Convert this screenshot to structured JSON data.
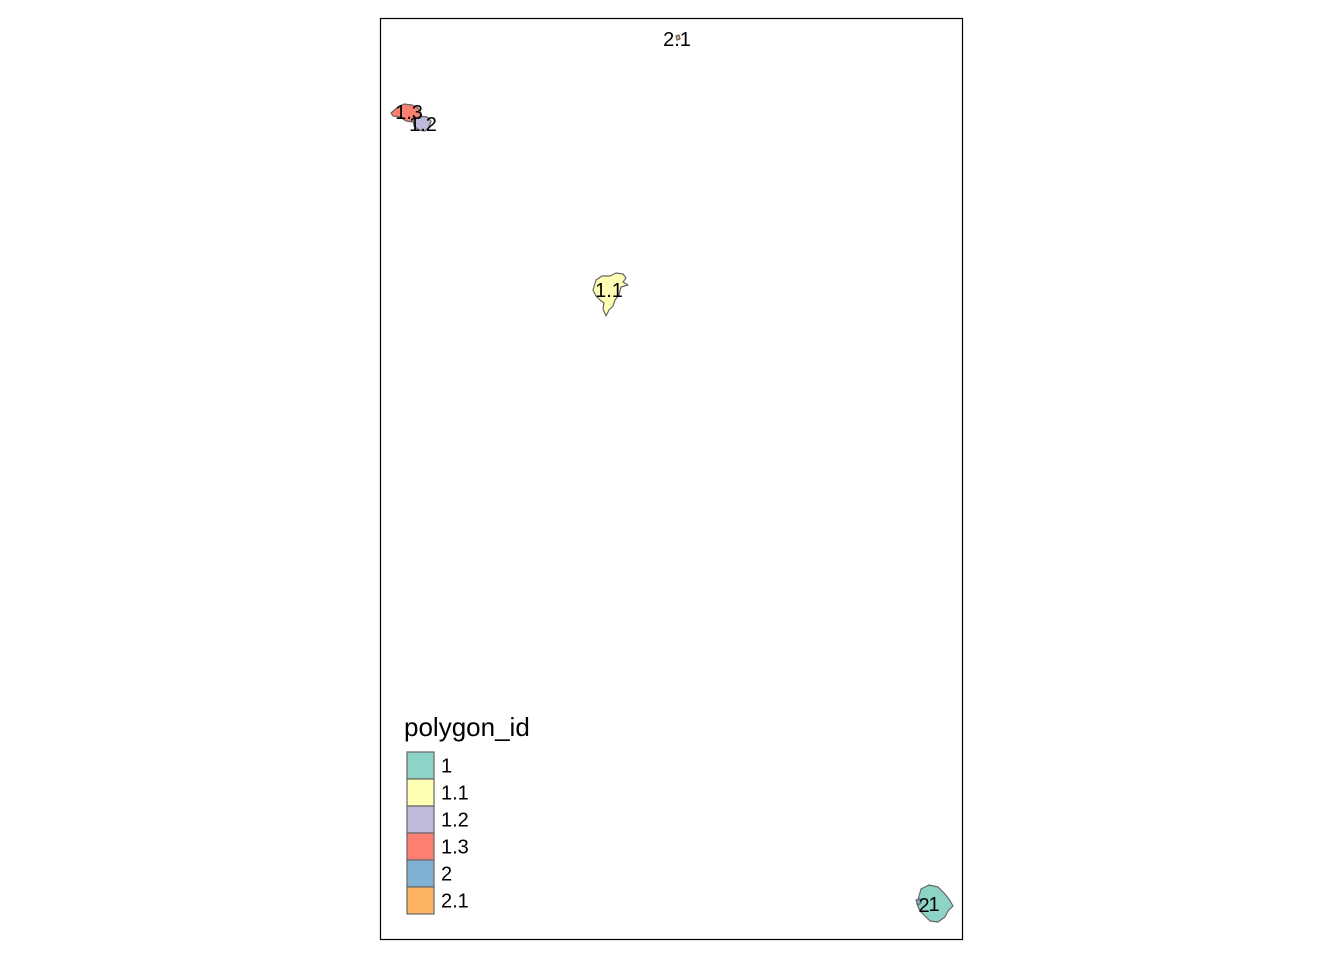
{
  "legend": {
    "title": "polygon_id",
    "entries": [
      {
        "label": "1",
        "color": "#8DD3C7"
      },
      {
        "label": "1.1",
        "color": "#FFFFB3"
      },
      {
        "label": "1.2",
        "color": "#BEBADA"
      },
      {
        "label": "1.3",
        "color": "#FB8072"
      },
      {
        "label": "2",
        "color": "#80B1D3"
      },
      {
        "label": "2.1",
        "color": "#FDB462"
      }
    ]
  },
  "polygons": [
    {
      "id": "1.3",
      "label": "1.3",
      "color": "#FB8072"
    },
    {
      "id": "1.2",
      "label": "1.2",
      "color": "#BEBADA"
    },
    {
      "id": "1.1",
      "label": "1.1",
      "color": "#FFFFB3"
    },
    {
      "id": "1",
      "label": "1",
      "color": "#8DD3C7"
    },
    {
      "id": "2",
      "label": "2",
      "color": "#80B1D3"
    },
    {
      "id": "2.1",
      "label": "2.1",
      "color": "#FDB462"
    }
  ]
}
